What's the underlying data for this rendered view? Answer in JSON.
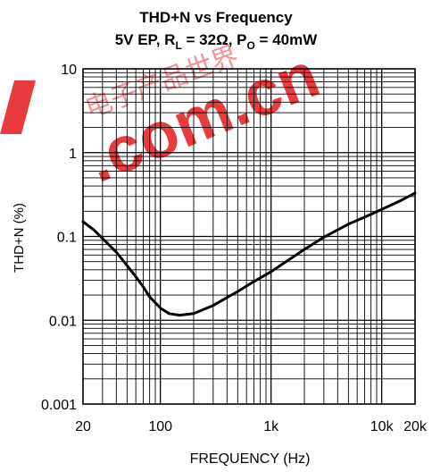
{
  "chart_data": {
    "type": "line",
    "title": "THD+N vs Frequency",
    "subtitle": {
      "prefix": "5V EP, R",
      "rl_sub": "L",
      "mid": " = 32Ω, P",
      "po_sub": "O",
      "suffix": " = 40mW"
    },
    "xlabel": "FREQUENCY (Hz)",
    "ylabel": "THD+N (%)",
    "x_scale": "log",
    "y_scale": "log",
    "xlim": [
      20,
      20000
    ],
    "ylim": [
      0.001,
      10
    ],
    "grid": true,
    "x_ticks": [
      {
        "value": 20,
        "label": "20"
      },
      {
        "value": 100,
        "label": "100"
      },
      {
        "value": 1000,
        "label": "1k"
      },
      {
        "value": 10000,
        "label": "10k"
      },
      {
        "value": 20000,
        "label": "20k"
      }
    ],
    "y_ticks": [
      {
        "value": 10,
        "label": "10"
      },
      {
        "value": 1,
        "label": "1"
      },
      {
        "value": 0.1,
        "label": "0.1"
      },
      {
        "value": 0.01,
        "label": "0.01"
      },
      {
        "value": 0.001,
        "label": "0.001"
      }
    ],
    "series": [
      {
        "color": "#000000",
        "x": [
          20,
          25,
          30,
          40,
          50,
          60,
          70,
          80,
          100,
          120,
          150,
          200,
          300,
          500,
          700,
          1000,
          2000,
          3000,
          5000,
          7000,
          10000,
          15000,
          20000
        ],
        "y": [
          0.15,
          0.12,
          0.095,
          0.065,
          0.045,
          0.033,
          0.025,
          0.019,
          0.014,
          0.012,
          0.0115,
          0.012,
          0.015,
          0.022,
          0.029,
          0.038,
          0.07,
          0.098,
          0.14,
          0.17,
          0.21,
          0.27,
          0.33
        ]
      }
    ]
  },
  "watermark": {
    "text": ".com.cn",
    "chinese": "电子产品世界",
    "color": "#e8262b"
  }
}
